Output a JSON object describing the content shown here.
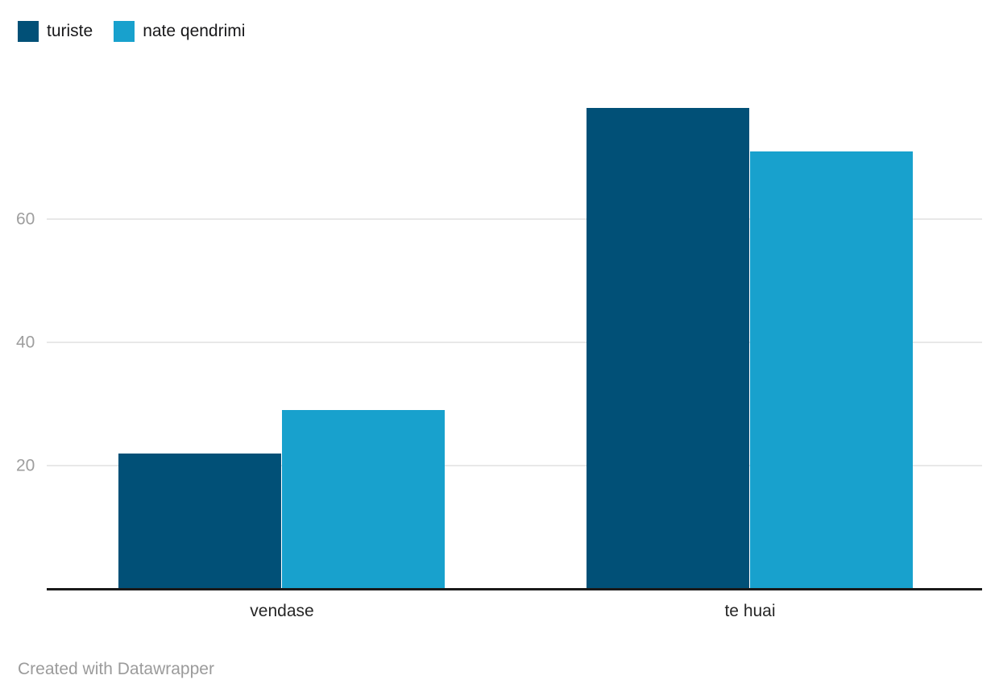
{
  "chart_data": {
    "type": "bar",
    "categories": [
      "vendase",
      "te huai"
    ],
    "series": [
      {
        "name": "turiste",
        "color": "#015077",
        "values": [
          22,
          78
        ]
      },
      {
        "name": "nate qendrimi",
        "color": "#18a1cd",
        "values": [
          29,
          71
        ]
      }
    ],
    "yticks": [
      20,
      40,
      60
    ],
    "ylim": [
      0,
      88
    ],
    "grid": "horizontal",
    "legend_position": "top-left",
    "title": "",
    "xlabel": "",
    "ylabel": ""
  },
  "legend": {
    "items": [
      {
        "label": "turiste",
        "color": "#015077"
      },
      {
        "label": "nate qendrimi",
        "color": "#18a1cd"
      }
    ]
  },
  "footer": {
    "credit": "Created with Datawrapper"
  },
  "colors": {
    "background": "#ffffff",
    "gridline": "#e8e8e8",
    "axis_baseline": "#1a1a1a",
    "tick_label": "#9e9e9e",
    "category_label": "#262626",
    "legend_text": "#18181a",
    "footer_text": "#9b9b9b"
  }
}
